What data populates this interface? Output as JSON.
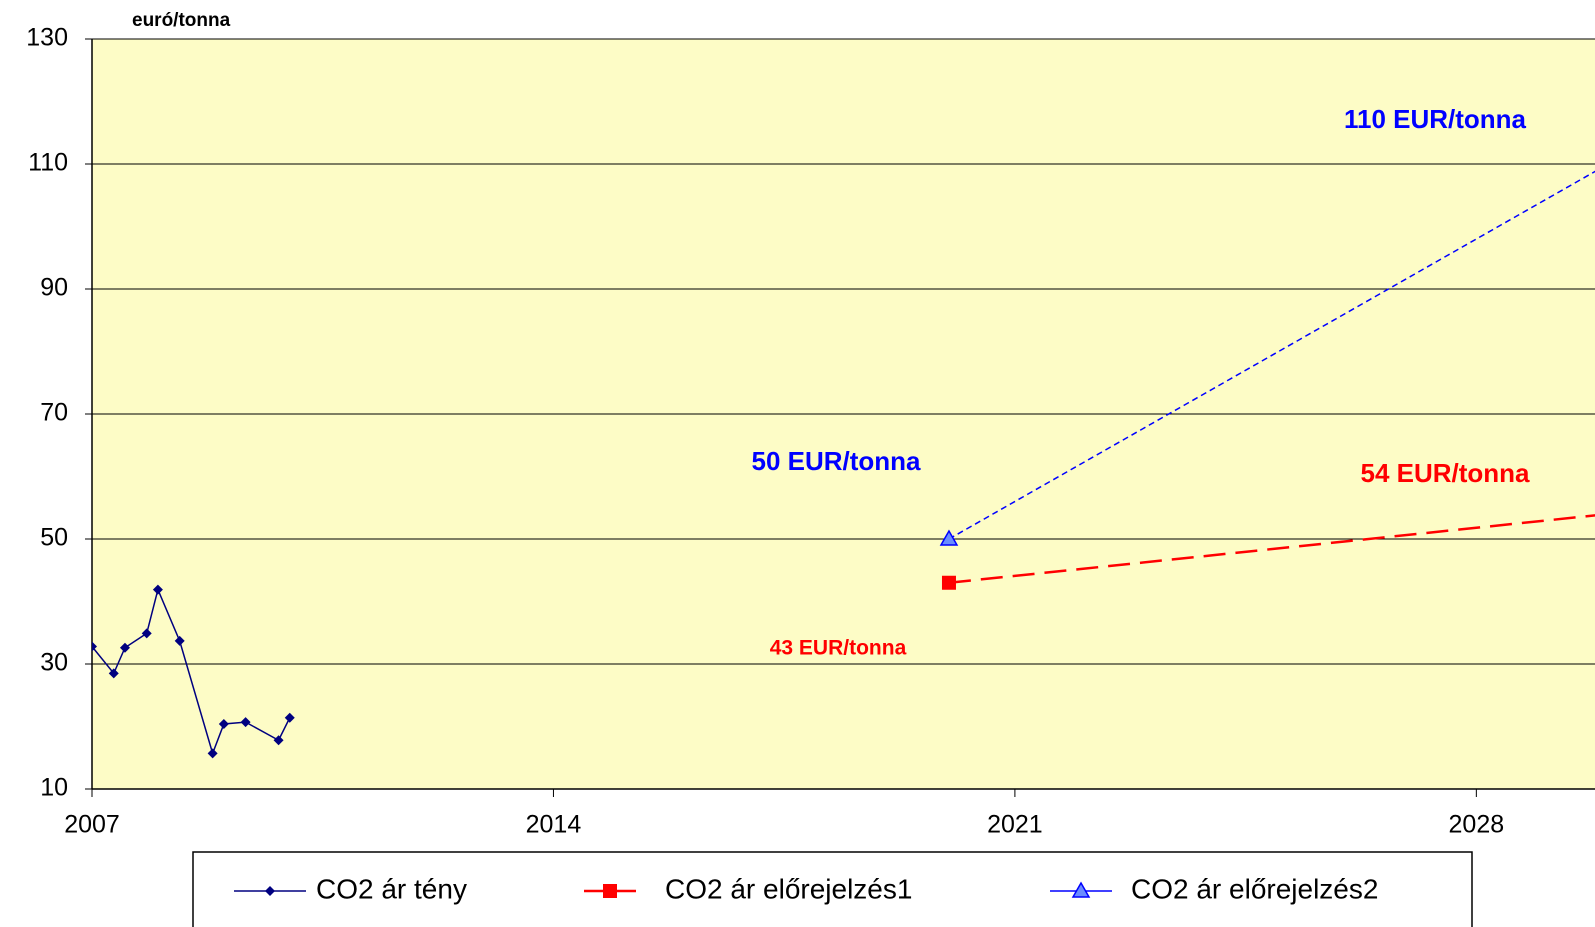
{
  "chart_data": {
    "type": "line",
    "y_axis_label": "euró/tonna",
    "xlim": [
      2007,
      2029.8
    ],
    "xticks": [
      2007,
      2014,
      2021,
      2028
    ],
    "ylim": [
      10,
      130
    ],
    "yticks": [
      10,
      30,
      50,
      70,
      90,
      110,
      130
    ],
    "grid": true,
    "plot_background": "#fdfcc6",
    "series": [
      {
        "name": "CO2 ár tény",
        "color": "#000080",
        "marker": "diamond",
        "dash": "solid",
        "x": [
          2007,
          2007.33,
          2007.5,
          2007.83,
          2008,
          2008.33,
          2008.83,
          2009,
          2009.33,
          2009.83,
          2010
        ],
        "values": [
          32.8,
          28.5,
          32.6,
          34.9,
          41.9,
          33.7,
          15.7,
          20.4,
          20.7,
          17.8,
          21.4
        ]
      },
      {
        "name": "CO2 ár előrejelzés1",
        "color": "#ff0000",
        "marker": "square",
        "dash": "long",
        "x": [
          2020,
          2022,
          2024,
          2026,
          2028,
          2030
        ],
        "values": [
          43,
          45.2,
          47.4,
          49.6,
          51.8,
          54
        ]
      },
      {
        "name": "CO2 ár előrejelzés2",
        "color": "#0000ff",
        "marker": "triangle",
        "dash": "short",
        "x": [
          2020,
          2022,
          2024,
          2026,
          2028,
          2030
        ],
        "values": [
          50,
          62,
          74,
          86,
          98,
          110
        ]
      }
    ],
    "annotations": [
      {
        "text": "110 EUR/tonna",
        "color": "#0000ff"
      },
      {
        "text": "50 EUR/tonna",
        "color": "#0000ff"
      },
      {
        "text": "54 EUR/tonna",
        "color": "#ff0000"
      },
      {
        "text": "43 EUR/tonna",
        "color": "#ff0000"
      }
    ]
  }
}
